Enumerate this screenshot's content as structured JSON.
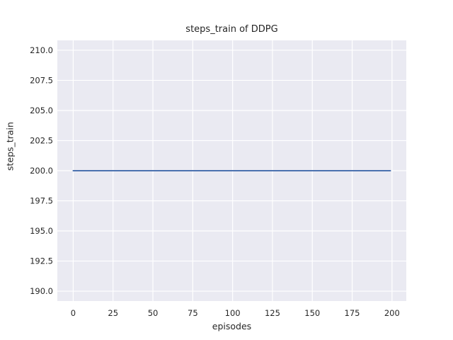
{
  "chart_data": {
    "type": "line",
    "title": "steps_train of DDPG",
    "xlabel": "episodes",
    "ylabel": "steps_train",
    "x_ticks": [
      0,
      25,
      50,
      75,
      100,
      125,
      150,
      175,
      200
    ],
    "x_tick_labels": [
      "0",
      "25",
      "50",
      "75",
      "100",
      "125",
      "150",
      "175",
      "200"
    ],
    "y_ticks": [
      190.0,
      192.5,
      195.0,
      197.5,
      200.0,
      202.5,
      205.0,
      207.5,
      210.0
    ],
    "y_tick_labels": [
      "190.0",
      "192.5",
      "195.0",
      "197.5",
      "200.0",
      "202.5",
      "205.0",
      "207.5",
      "210.0"
    ],
    "xlim": [
      -9.95,
      208.95
    ],
    "ylim": [
      189.18,
      210.82
    ],
    "grid": true,
    "legend": false,
    "plot_background_color": "#eaeaf2",
    "grid_color": "#ffffff",
    "text_color": "#262626",
    "series": [
      {
        "name": "steps_train",
        "color": "#4c72b0",
        "x": [
          0,
          199
        ],
        "y": [
          200,
          200
        ],
        "description": "constant line at steps_train = 200 from episode 0 to 199"
      }
    ]
  }
}
